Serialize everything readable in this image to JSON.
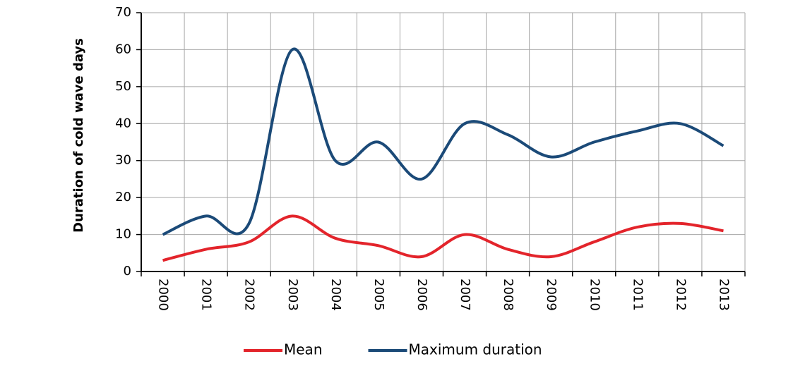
{
  "chart_data": {
    "type": "line",
    "y_label": "Duration of cold wave days",
    "categories": [
      "2000",
      "2001",
      "2002",
      "2003",
      "2004",
      "2005",
      "2006",
      "2007",
      "2008",
      "2009",
      "2010",
      "2011",
      "2012",
      "2013"
    ],
    "series": [
      {
        "name": "Mean",
        "color": "#e3242b",
        "values": [
          3,
          6,
          8,
          15,
          9,
          7,
          4,
          10,
          6,
          4,
          8,
          12,
          13,
          11
        ]
      },
      {
        "name": "Maximum duration",
        "color": "#1b4a78",
        "values": [
          10,
          15,
          13,
          60,
          30,
          35,
          25,
          40,
          37,
          31,
          35,
          38,
          40,
          34
        ]
      }
    ],
    "ylim": [
      0,
      70
    ],
    "yticks": [
      0,
      10,
      20,
      30,
      40,
      50,
      60,
      70
    ],
    "grid": true
  }
}
